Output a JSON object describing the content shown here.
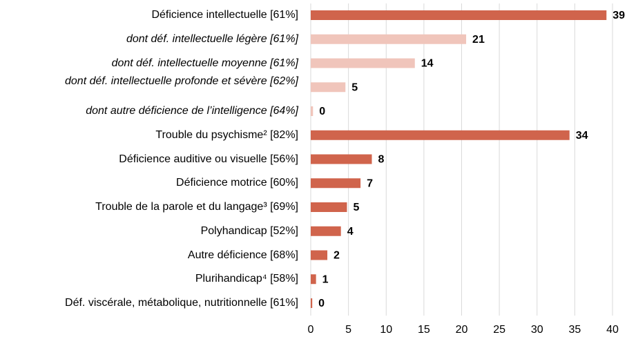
{
  "chart_data": {
    "type": "bar",
    "orientation": "horizontal",
    "categories": [
      "Déficience intellectuelle [61%]",
      "dont déf. intellectuelle légère [61%]",
      "dont déf. intellectuelle moyenne [61%]",
      "dont déf. intellectuelle profonde et sévère [62%]",
      "dont autre déficience de l’intelligence [64%]",
      "Trouble du psychisme² [82%]",
      "Déficience auditive ou visuelle [56%]",
      "Déficience motrice [60%]",
      "Trouble de la parole et du langage³ [69%]",
      "Polyhandicap [52%]",
      "Autre déficience [68%]",
      "Plurihandicap⁴ [58%]",
      "Déf. viscérale, métabolique, nutritionnelle [61%]"
    ],
    "values": [
      39.2,
      20.6,
      13.8,
      4.6,
      0.3,
      34.3,
      8.1,
      6.6,
      4.8,
      4.0,
      2.2,
      0.7,
      0.2
    ],
    "value_labels": [
      "39",
      "21",
      "14",
      "5",
      "0",
      "34",
      "8",
      "7",
      "5",
      "4",
      "2",
      "1",
      "0"
    ],
    "colors": [
      "#d0644c",
      "#f0c5bb",
      "#f0c5bb",
      "#f0c5bb",
      "#f0c5bb",
      "#d0644c",
      "#d0644c",
      "#d0644c",
      "#d0644c",
      "#d0644c",
      "#d0644c",
      "#d0644c",
      "#d0644c"
    ],
    "label_styles": [
      "normal",
      "italic",
      "italic",
      "italic",
      "italic",
      "normal",
      "normal",
      "normal",
      "normal",
      "normal",
      "normal",
      "normal",
      "normal"
    ],
    "xlim": [
      0,
      40
    ],
    "xticks": [
      0,
      5,
      10,
      15,
      20,
      25,
      30,
      35,
      40
    ],
    "grid": true
  }
}
